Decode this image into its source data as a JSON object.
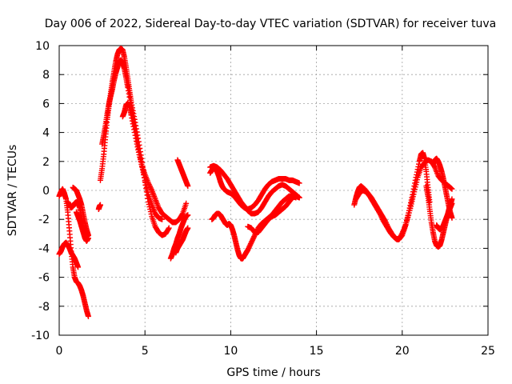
{
  "chart_data": {
    "type": "scatter",
    "title": "Day 006 of 2022, Sidereal Day-to-day VTEC variation (SDTVAR) for receiver tuva",
    "xlabel": "GPS time / hours",
    "ylabel": "SDTVAR / TECUs",
    "xlim": [
      0,
      25
    ],
    "ylim": [
      -10,
      10
    ],
    "xticks": [
      0,
      5,
      10,
      15,
      20,
      25
    ],
    "yticks": [
      -10,
      -8,
      -6,
      -4,
      -2,
      0,
      2,
      4,
      6,
      8,
      10
    ],
    "grid": true,
    "marker": "+",
    "series_color": "#ff0000",
    "series": [
      {
        "name": "s1",
        "x": [
          0.0,
          0.1,
          0.2,
          0.3,
          0.4,
          0.5,
          0.6,
          0.7,
          0.8,
          0.9,
          1.0,
          1.1,
          1.2,
          1.3,
          1.4,
          1.5,
          1.6,
          1.7
        ],
        "y": [
          -0.4,
          -0.1,
          0.1,
          -0.2,
          -0.6,
          -1.5,
          -2.8,
          -4.2,
          -5.3,
          -6.0,
          -6.3,
          -6.4,
          -6.6,
          -6.9,
          -7.3,
          -7.8,
          -8.3,
          -8.7
        ]
      },
      {
        "name": "s2",
        "x": [
          0.0,
          0.1,
          0.2,
          0.3,
          0.4,
          0.5,
          0.6,
          0.7,
          0.8,
          0.9,
          1.0,
          1.1
        ],
        "y": [
          -4.4,
          -4.2,
          -3.9,
          -3.7,
          -3.6,
          -3.8,
          -4.0,
          -4.3,
          -4.5,
          -4.7,
          -5.0,
          -5.3
        ]
      },
      {
        "name": "s3",
        "x": [
          0.5,
          0.6,
          0.7,
          0.8,
          0.9,
          1.0,
          1.1,
          1.2,
          1.3,
          1.4,
          1.5,
          1.6,
          1.7
        ],
        "y": [
          -0.8,
          -1.0,
          -1.2,
          -1.1,
          -0.9,
          -0.8,
          -0.9,
          -1.2,
          -1.8,
          -2.5,
          -3.0,
          -3.2,
          -3.1
        ]
      },
      {
        "name": "s4",
        "x": [
          0.8,
          0.9,
          1.0,
          1.1,
          1.2,
          1.3,
          1.4,
          1.5,
          1.6,
          1.7
        ],
        "y": [
          0.2,
          0.1,
          0.0,
          -0.3,
          -0.6,
          -1.0,
          -1.6,
          -2.2,
          -2.7,
          -3.1
        ]
      },
      {
        "name": "s5",
        "x": [
          1.0,
          1.1,
          1.2,
          1.3,
          1.4,
          1.5,
          1.6,
          1.7
        ],
        "y": [
          -1.5,
          -1.8,
          -2.1,
          -2.5,
          -2.9,
          -3.3,
          -3.5,
          -3.3
        ]
      },
      {
        "name": "s6",
        "x": [
          2.3,
          2.35,
          2.4
        ],
        "y": [
          -1.3,
          -1.1,
          -1.0
        ]
      },
      {
        "name": "s7",
        "x": [
          2.4,
          2.5,
          2.6,
          2.7,
          2.8,
          2.9,
          3.0,
          3.1,
          3.2,
          3.3,
          3.4,
          3.5,
          3.6,
          3.7,
          3.8,
          3.9,
          4.0,
          4.1,
          4.2,
          4.4,
          4.6,
          4.8,
          5.0,
          5.2,
          5.4,
          5.6,
          5.8,
          6.0,
          6.2,
          6.4
        ],
        "y": [
          0.7,
          1.5,
          2.5,
          3.7,
          4.9,
          5.8,
          6.7,
          7.5,
          8.2,
          8.9,
          9.4,
          9.7,
          9.8,
          9.7,
          9.2,
          8.5,
          7.7,
          6.9,
          6.1,
          4.9,
          3.6,
          2.2,
          0.6,
          -0.8,
          -1.8,
          -2.5,
          -2.9,
          -3.1,
          -3.0,
          -2.6
        ]
      },
      {
        "name": "s8",
        "x": [
          2.5,
          2.6,
          2.7,
          2.8,
          2.9,
          3.0,
          3.1,
          3.2,
          3.3,
          3.4,
          3.5,
          3.6,
          3.7,
          3.8,
          3.9,
          4.0,
          4.2,
          4.4,
          4.6,
          4.8,
          5.0,
          5.2,
          5.4,
          5.6,
          5.8,
          6.0
        ],
        "y": [
          3.2,
          3.8,
          4.5,
          5.3,
          6.0,
          6.5,
          7.0,
          7.6,
          8.1,
          8.5,
          8.9,
          9.0,
          8.8,
          8.4,
          7.8,
          7.1,
          5.8,
          4.5,
          3.1,
          1.8,
          0.7,
          -0.3,
          -1.0,
          -1.6,
          -1.9,
          -2.0
        ]
      },
      {
        "name": "s9",
        "x": [
          3.7,
          3.8,
          3.9,
          4.0,
          4.1,
          4.2,
          4.4,
          4.6,
          4.8,
          5.0,
          5.2,
          5.4,
          5.6,
          5.8,
          6.0,
          6.2,
          6.4,
          6.6,
          6.8,
          7.0,
          7.2,
          7.4
        ],
        "y": [
          5.1,
          5.4,
          5.9,
          6.0,
          5.8,
          5.2,
          4.0,
          2.8,
          1.8,
          1.1,
          0.5,
          0.0,
          -0.6,
          -1.2,
          -1.6,
          -1.8,
          -2.0,
          -2.2,
          -2.2,
          -2.0,
          -1.6,
          -0.9
        ]
      },
      {
        "name": "s10",
        "x": [
          6.5,
          6.6,
          6.7,
          6.8,
          6.9,
          7.0,
          7.1,
          7.2,
          7.3,
          7.4,
          7.5
        ],
        "y": [
          -4.7,
          -4.4,
          -4.0,
          -3.7,
          -3.3,
          -3.0,
          -2.6,
          -2.3,
          -2.0,
          -1.8,
          -1.7
        ]
      },
      {
        "name": "s11",
        "x": [
          6.8,
          6.9,
          7.0,
          7.1,
          7.2,
          7.3,
          7.4,
          7.5
        ],
        "y": [
          -4.3,
          -4.0,
          -3.8,
          -3.6,
          -3.4,
          -3.1,
          -2.8,
          -2.6
        ]
      },
      {
        "name": "s12",
        "x": [
          6.9,
          7.0,
          7.1,
          7.2,
          7.3,
          7.4,
          7.5
        ],
        "y": [
          2.1,
          1.8,
          1.5,
          1.2,
          0.9,
          0.6,
          0.3
        ]
      },
      {
        "name": "s13",
        "x": [
          8.8,
          8.9,
          9.0,
          9.1,
          9.2,
          9.3,
          9.4,
          9.5,
          9.6,
          9.8,
          10.0,
          10.2,
          10.4,
          10.6,
          10.8,
          11.0,
          11.2,
          11.4,
          11.6,
          11.8,
          12.0,
          12.2,
          12.4,
          12.6,
          12.8,
          13.0,
          13.2,
          13.4,
          13.6,
          13.8,
          14.0
        ],
        "y": [
          1.2,
          1.4,
          1.5,
          1.5,
          1.3,
          1.0,
          0.6,
          0.3,
          0.1,
          -0.1,
          -0.2,
          -0.4,
          -0.7,
          -1.0,
          -1.2,
          -1.3,
          -1.2,
          -1.0,
          -0.7,
          -0.3,
          0.1,
          0.4,
          0.6,
          0.7,
          0.8,
          0.8,
          0.8,
          0.7,
          0.7,
          0.6,
          0.5
        ]
      },
      {
        "name": "s14",
        "x": [
          8.8,
          9.0,
          9.2,
          9.4,
          9.6,
          9.8,
          10.0,
          10.2,
          10.4,
          10.6,
          10.8,
          11.0,
          11.2,
          11.4,
          11.6,
          11.8,
          12.0,
          12.2,
          12.4,
          12.6,
          12.8,
          13.0,
          13.2,
          13.4,
          13.6,
          13.8,
          14.0
        ],
        "y": [
          1.6,
          1.7,
          1.6,
          1.4,
          1.1,
          0.8,
          0.4,
          0.0,
          -0.4,
          -0.8,
          -1.1,
          -1.4,
          -1.6,
          -1.6,
          -1.5,
          -1.2,
          -0.8,
          -0.4,
          -0.1,
          0.1,
          0.3,
          0.4,
          0.3,
          0.1,
          -0.1,
          -0.3,
          -0.5
        ]
      },
      {
        "name": "s15",
        "x": [
          8.9,
          9.0,
          9.1,
          9.2,
          9.3,
          9.4,
          9.5,
          9.6,
          9.7,
          9.8,
          9.9,
          10.0,
          10.1,
          10.2,
          10.3,
          10.4,
          10.5,
          10.6,
          10.7,
          10.8,
          10.9,
          11.0,
          11.2,
          11.4,
          11.6,
          11.8,
          12.0,
          12.2,
          12.4,
          12.6,
          12.8,
          13.0,
          13.2,
          13.4,
          13.6,
          13.8
        ],
        "y": [
          -2.0,
          -1.9,
          -1.7,
          -1.6,
          -1.6,
          -1.7,
          -1.9,
          -2.1,
          -2.3,
          -2.4,
          -2.3,
          -2.4,
          -2.7,
          -3.1,
          -3.6,
          -4.1,
          -4.5,
          -4.7,
          -4.7,
          -4.5,
          -4.3,
          -4.1,
          -3.6,
          -3.1,
          -2.6,
          -2.3,
          -2.1,
          -1.9,
          -1.7,
          -1.4,
          -1.1,
          -0.8,
          -0.6,
          -0.4,
          -0.4,
          -0.5
        ]
      },
      {
        "name": "s16",
        "x": [
          11.0,
          11.2,
          11.4,
          11.6,
          11.8,
          12.0,
          12.2,
          12.4,
          12.6,
          12.8,
          13.0,
          13.2,
          13.4,
          13.6,
          13.8,
          14.0
        ],
        "y": [
          -2.5,
          -2.6,
          -2.9,
          -2.9,
          -2.6,
          -2.3,
          -2.0,
          -1.8,
          -1.7,
          -1.5,
          -1.3,
          -1.1,
          -0.8,
          -0.5,
          -0.4,
          -0.5
        ]
      },
      {
        "name": "s17",
        "x": [
          17.2,
          17.3,
          17.4,
          17.5,
          17.6,
          17.8,
          18.0,
          18.2,
          18.4,
          18.6,
          18.8,
          19.0,
          19.2,
          19.4,
          19.6,
          19.8,
          20.0,
          20.2,
          20.4,
          20.6,
          20.8,
          21.0,
          21.1,
          21.2,
          21.3,
          21.4,
          21.5,
          21.6
        ],
        "y": [
          -1.0,
          -0.5,
          -0.1,
          0.2,
          0.3,
          0.1,
          -0.2,
          -0.5,
          -0.9,
          -1.3,
          -1.7,
          -2.1,
          -2.6,
          -3.0,
          -3.3,
          -3.4,
          -3.1,
          -2.4,
          -1.4,
          -0.3,
          0.9,
          2.0,
          2.5,
          2.6,
          2.2,
          1.3,
          0.2,
          -0.8
        ]
      },
      {
        "name": "s18",
        "x": [
          17.3,
          17.5,
          17.7,
          17.9,
          18.1,
          18.3,
          18.5,
          18.7,
          18.9,
          19.1,
          19.3,
          19.5,
          19.7,
          19.9,
          20.1,
          20.3,
          20.5,
          20.7,
          20.9,
          21.1,
          21.3,
          21.5,
          21.7,
          21.9,
          22.1,
          22.3,
          22.5,
          22.7,
          22.9
        ],
        "y": [
          -0.6,
          -0.2,
          0.0,
          -0.1,
          -0.4,
          -0.8,
          -1.2,
          -1.6,
          -2.1,
          -2.5,
          -2.9,
          -3.2,
          -3.4,
          -3.2,
          -2.7,
          -2.0,
          -1.1,
          -0.1,
          0.9,
          1.6,
          1.9,
          2.1,
          2.0,
          1.6,
          1.0,
          0.7,
          0.5,
          0.3,
          0.1
        ]
      },
      {
        "name": "s19",
        "x": [
          21.4,
          21.5,
          21.6,
          21.7,
          21.8,
          21.9,
          22.0,
          22.1,
          22.2,
          22.3,
          22.4,
          22.5,
          22.6,
          22.7,
          22.8,
          22.9
        ],
        "y": [
          0.3,
          -0.4,
          -1.3,
          -2.2,
          -2.9,
          -3.5,
          -3.8,
          -3.9,
          -3.8,
          -3.4,
          -2.9,
          -2.4,
          -1.9,
          -1.4,
          -1.0,
          -0.6
        ]
      },
      {
        "name": "s20",
        "x": [
          21.8,
          21.9,
          22.0,
          22.1,
          22.2,
          22.3,
          22.4,
          22.5,
          22.6,
          22.7,
          22.8,
          22.9
        ],
        "y": [
          1.8,
          2.1,
          2.2,
          2.0,
          1.7,
          1.3,
          0.8,
          0.2,
          -0.4,
          -1.0,
          -1.5,
          -1.9
        ]
      },
      {
        "name": "s21",
        "x": [
          22.0,
          22.1,
          22.2,
          22.3,
          22.4,
          22.5,
          22.6,
          22.7,
          22.8,
          22.9
        ],
        "y": [
          -2.4,
          -2.6,
          -2.7,
          -2.6,
          -2.4,
          -2.1,
          -1.8,
          -1.5,
          -1.2,
          -0.9
        ]
      }
    ]
  }
}
